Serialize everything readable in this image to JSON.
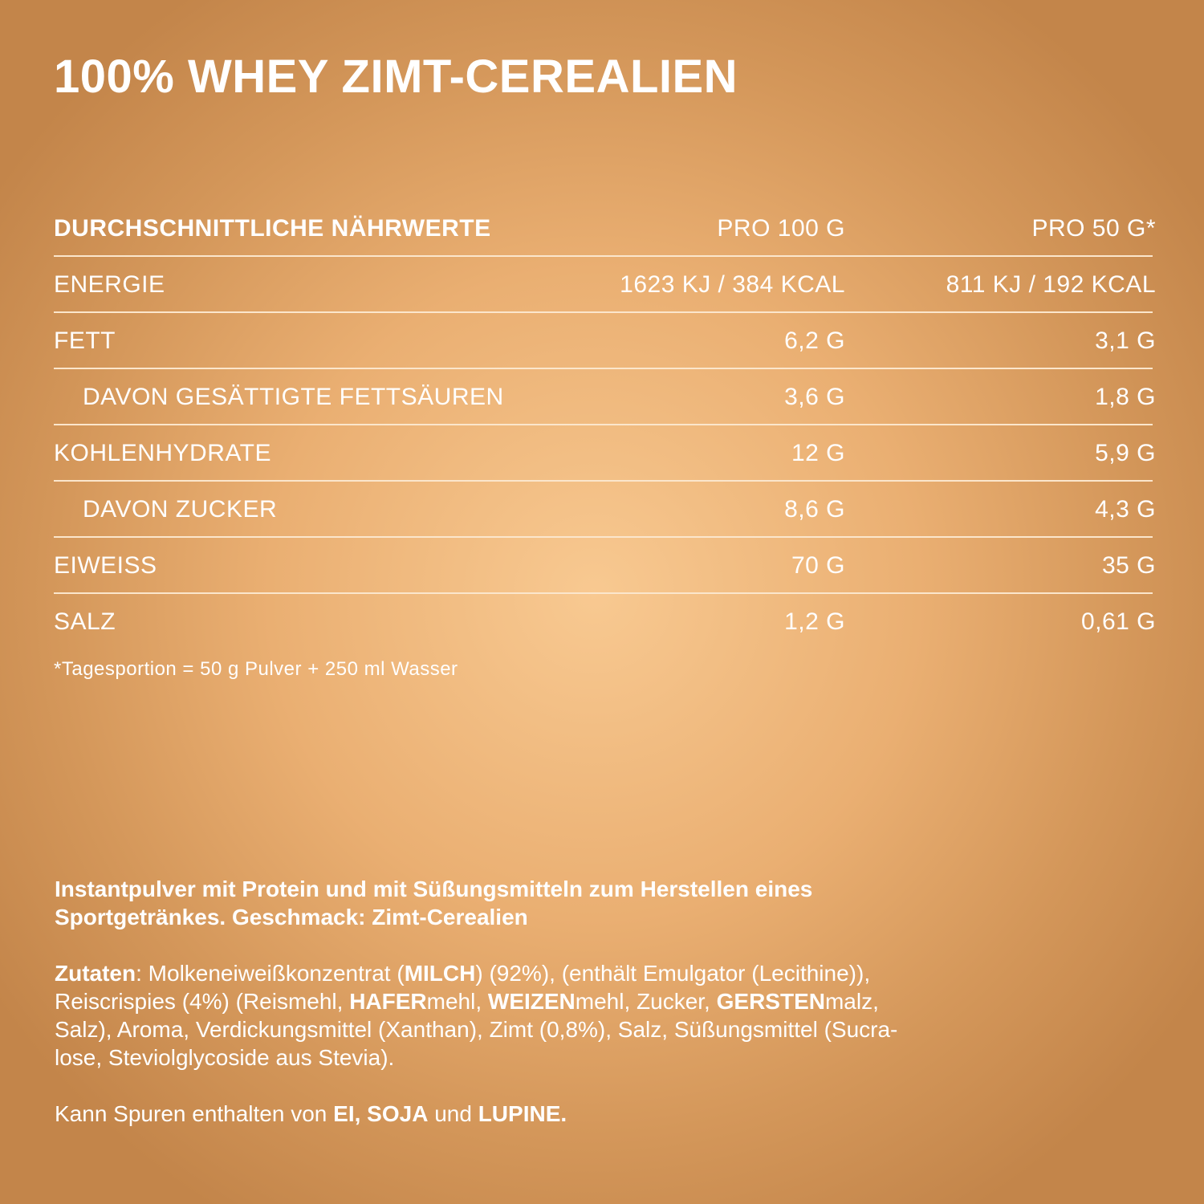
{
  "title": "100% WHEY ZIMT-CEREALIEN",
  "table": {
    "header": [
      "DURCHSCHNITTLICHE NÄHRWERTE",
      "PRO 100 G",
      "PRO 50 G*"
    ],
    "rows": [
      {
        "label": "ENERGIE",
        "per_100g": "1623 KJ / 384 KCAL",
        "per_50g": "811 KJ / 192 KCAL",
        "indent": false
      },
      {
        "label": "FETT",
        "per_100g": "6,2 G",
        "per_50g": "3,1 G",
        "indent": false
      },
      {
        "label": "DAVON GESÄTTIGTE FETTSÄUREN",
        "per_100g": "3,6 G",
        "per_50g": "1,8 G",
        "indent": true
      },
      {
        "label": "KOHLENHYDRATE",
        "per_100g": "12 G",
        "per_50g": "5,9 G",
        "indent": false
      },
      {
        "label": "DAVON ZUCKER",
        "per_100g": "8,6 G",
        "per_50g": "4,3 G",
        "indent": true
      },
      {
        "label": "EIWEISS",
        "per_100g": "70 G",
        "per_50g": "35 G",
        "indent": false
      },
      {
        "label": "SALZ",
        "per_100g": "1,2 G",
        "per_50g": "0,61 G",
        "indent": false
      }
    ]
  },
  "footnote": "*Tagesportion = 50 g Pulver + 250 ml Wasser",
  "description": [
    "Instantpulver mit Protein und mit Süßungsmitteln zum Herstellen eines",
    "Sportgetränkes. Geschmack: Zimt-Cerealien"
  ],
  "ingredients": [
    [
      {
        "text": "Zutaten",
        "bold": true
      },
      {
        "text": ": Molkeneiweißkonzentrat ("
      },
      {
        "text": "MILCH",
        "bold": true
      },
      {
        "text": ") (92%), (enthält Emulgator (Lecithine)),"
      }
    ],
    [
      {
        "text": "Reiscrispies (4%) (Reismehl, "
      },
      {
        "text": "HAFER",
        "bold": true
      },
      {
        "text": "mehl, "
      },
      {
        "text": "WEIZEN",
        "bold": true
      },
      {
        "text": "mehl, Zucker, "
      },
      {
        "text": "GERSTEN",
        "bold": true
      },
      {
        "text": "malz,"
      }
    ],
    [
      {
        "text": "Salz), Aroma, Verdickungsmittel (Xanthan), Zimt (0,8%), Salz, Süßungsmittel (Sucra-"
      }
    ],
    [
      {
        "text": "lose, Steviolglycoside aus Stevia)."
      }
    ]
  ],
  "traces": [
    {
      "text": "Kann Spuren enthalten von "
    },
    {
      "text": "EI, SOJA",
      "bold": true
    },
    {
      "text": " und "
    },
    {
      "text": "LUPINE.",
      "bold": true
    }
  ]
}
